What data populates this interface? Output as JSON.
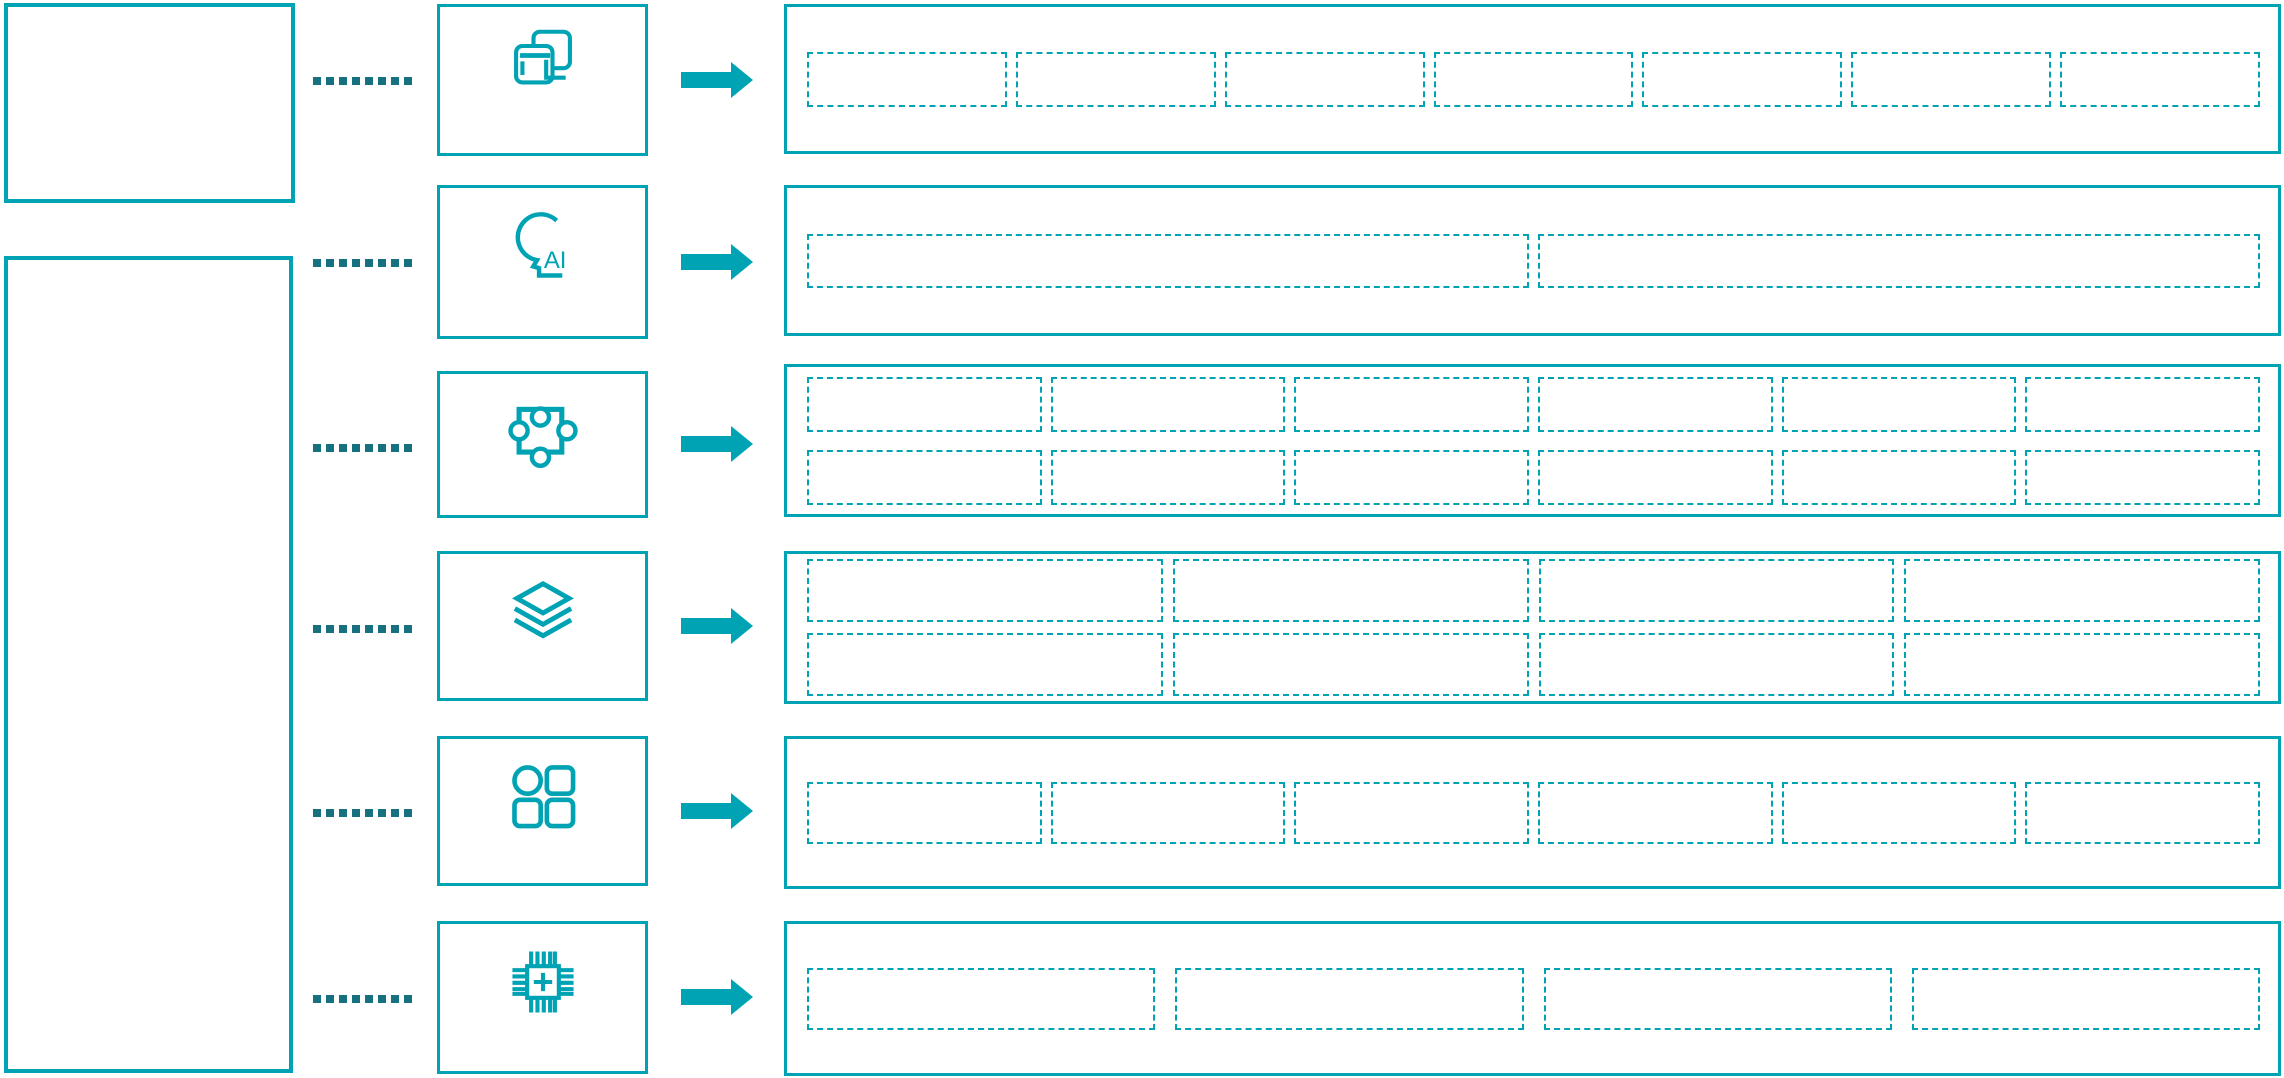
{
  "diagram": {
    "background_color": "#ffffff",
    "accent_color": "#00a3b4",
    "connector_color": "#16707e",
    "left_panels": [
      {
        "name": "top-left-box",
        "label": ""
      },
      {
        "name": "main-left-box",
        "label": ""
      }
    ],
    "rows": [
      {
        "icon": "overlapping-windows-icon",
        "placeholder_cols": 7,
        "placeholder_rows": 1
      },
      {
        "icon": "ai-head-icon",
        "placeholder_cols": 2,
        "placeholder_rows": 1
      },
      {
        "icon": "puzzle-piece-icon",
        "placeholder_cols": 6,
        "placeholder_rows": 2
      },
      {
        "icon": "layers-icon",
        "placeholder_cols": 4,
        "placeholder_rows": 2
      },
      {
        "icon": "apps-grid-icon",
        "placeholder_cols": 6,
        "placeholder_rows": 1
      },
      {
        "icon": "chip-icon",
        "placeholder_cols": 4,
        "placeholder_rows": 1
      }
    ],
    "ai_icon_text": "AI"
  }
}
